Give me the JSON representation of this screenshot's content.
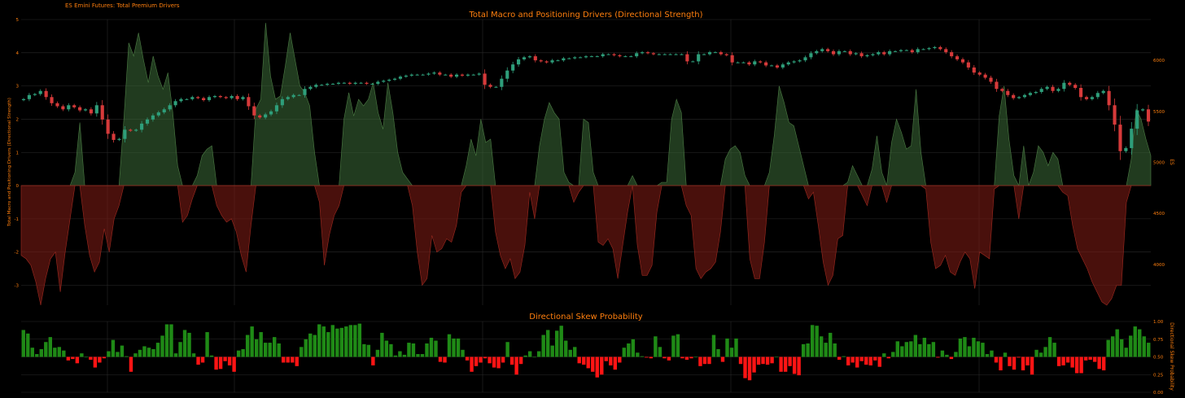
{
  "header": {
    "label": "ES Emini Futures: Total Premium Drivers"
  },
  "colors": {
    "background": "#000000",
    "accent": "#ff7f0e",
    "grid": "#2a2a2a",
    "area_positive": "#3d6b38",
    "area_negative": "#7a1a14",
    "candle_up": "#2e9e7a",
    "candle_down": "#d63a3a",
    "bar_up": "#1f8a16",
    "bar_down": "#ff1414"
  },
  "chart_data": [
    {
      "type": "area",
      "title": "Total Macro and Positioning Drivers (Directional Strength)",
      "ylabel": "Total Macro and Positioning Drivers (Directional Strength)",
      "y2label": "ES",
      "ylim": [
        -3.6,
        5
      ],
      "yticks": [
        "-3",
        "-2",
        "-1",
        "0",
        "1",
        "2",
        "3",
        "4",
        "5"
      ],
      "y2lim": [
        3600,
        6400
      ],
      "y2ticks": [
        "4000",
        "4500",
        "5000",
        "5500",
        "6000"
      ],
      "grid": true,
      "series": [
        {
          "kind": "area",
          "values": [
            -2.1,
            -2.2,
            -2.4,
            -2.9,
            -3.6,
            -2.8,
            -2.2,
            -2.0,
            -3.2,
            -2.0,
            -1.0,
            0.4,
            1.9,
            -1.2,
            -2.1,
            -2.6,
            -2.3,
            -1.3,
            -2.0,
            -1.0,
            -0.6,
            2.0,
            4.3,
            3.9,
            4.6,
            3.8,
            3.1,
            3.9,
            3.3,
            2.9,
            3.4,
            2.2,
            0.6,
            -1.1,
            -0.9,
            -0.4,
            0.3,
            0.9,
            1.1,
            1.2,
            -0.6,
            -0.9,
            -1.1,
            -1.0,
            -1.4,
            -2.1,
            -2.6,
            -1.2,
            2.3,
            2.6,
            4.9,
            3.3,
            2.6,
            2.7,
            3.6,
            4.6,
            3.8,
            3.0,
            2.8,
            2.4,
            1.0,
            -0.5,
            -2.4,
            -1.5,
            -0.9,
            -0.6,
            2.0,
            2.8,
            2.1,
            2.6,
            2.4,
            2.6,
            3.1,
            2.2,
            1.7,
            3.1,
            2.2,
            1.0,
            0.4,
            0.2,
            -0.6,
            -2.0,
            -3.0,
            -2.8,
            -1.5,
            -2.0,
            -1.9,
            -1.6,
            -1.7,
            -1.2,
            -0.2,
            0.6,
            1.4,
            0.9,
            2.0,
            1.3,
            1.4,
            -1.4,
            -2.1,
            -2.5,
            -2.2,
            -2.8,
            -2.6,
            -1.8,
            -0.2,
            -1.0,
            1.2,
            2.0,
            2.5,
            2.2,
            2.0,
            0.4,
            0.1,
            -0.5,
            -0.2,
            2.0,
            1.9,
            0.4,
            -1.7,
            -1.8,
            -1.6,
            -1.9,
            -2.8,
            -1.8,
            -0.8,
            0.3,
            -1.8,
            -2.7,
            -2.7,
            -2.4,
            -0.8,
            0.1,
            0.1,
            2.0,
            2.6,
            2.2,
            -0.6,
            -0.9,
            -2.5,
            -2.8,
            -2.6,
            -2.5,
            -2.3,
            -1.4,
            0.8,
            1.1,
            1.2,
            1.0,
            0.3,
            -2.2,
            -2.8,
            -2.8,
            -1.7,
            0.4,
            1.5,
            3.0,
            2.5,
            1.9,
            1.8,
            1.2,
            0.6,
            -0.4,
            -0.2,
            -1.2,
            -2.3,
            -3.0,
            -2.7,
            -1.6,
            -1.5,
            0.1,
            0.6,
            0.3,
            -0.3,
            -0.6,
            0.5,
            1.5,
            0.4,
            -0.5,
            1.3,
            2.0,
            1.6,
            1.1,
            1.2,
            2.9,
            1.0,
            -0.1,
            -1.7,
            -2.5,
            -2.4,
            -2.1,
            -2.6,
            -2.7,
            -2.3,
            -2.0,
            -2.2,
            -3.1,
            -2.0,
            -2.1,
            -2.2,
            -0.1,
            2.1,
            3.0,
            1.4,
            0.3,
            -1.0,
            1.2,
            0.0,
            0.4,
            1.2,
            1.0,
            0.6,
            1.0,
            0.8,
            -0.2,
            -0.3,
            -1.2,
            -1.9,
            -2.2,
            -2.5,
            -2.9,
            -3.2,
            -3.5,
            -3.6,
            -3.4,
            -3.0,
            -3.0,
            -0.5,
            0.8,
            2.3,
            2.0,
            1.4,
            0.9
          ]
        },
        {
          "kind": "candlestick",
          "name": "ES",
          "close": [
            5620,
            5660,
            5670,
            5700,
            5640,
            5580,
            5550,
            5520,
            5560,
            5540,
            5510,
            5520,
            5480,
            5560,
            5420,
            5280,
            5220,
            5230,
            5320,
            5310,
            5320,
            5380,
            5420,
            5460,
            5490,
            5520,
            5560,
            5600,
            5620,
            5620,
            5640,
            5630,
            5610,
            5640,
            5650,
            5640,
            5630,
            5650,
            5620,
            5640,
            5550,
            5460,
            5440,
            5470,
            5500,
            5560,
            5620,
            5640,
            5660,
            5660,
            5720,
            5740,
            5760,
            5760,
            5770,
            5770,
            5780,
            5780,
            5770,
            5780,
            5780,
            5770,
            5770,
            5790,
            5800,
            5810,
            5820,
            5840,
            5850,
            5860,
            5860,
            5860,
            5870,
            5880,
            5860,
            5860,
            5840,
            5860,
            5850,
            5860,
            5860,
            5870,
            5760,
            5740,
            5740,
            5820,
            5900,
            5960,
            6010,
            6030,
            6040,
            6000,
            5990,
            5980,
            6000,
            6000,
            6020,
            6020,
            6030,
            6030,
            6040,
            6040,
            6040,
            6060,
            6060,
            6050,
            6040,
            6040,
            6040,
            6070,
            6080,
            6070,
            6060,
            6060,
            6060,
            6060,
            6060,
            6060,
            5990,
            5990,
            6060,
            6060,
            6080,
            6080,
            6060,
            6050,
            5980,
            5980,
            5980,
            5960,
            5990,
            5980,
            5950,
            5950,
            5930,
            5960,
            5980,
            5990,
            6000,
            6030,
            6070,
            6090,
            6110,
            6090,
            6060,
            6090,
            6090,
            6060,
            6070,
            6040,
            6050,
            6060,
            6080,
            6060,
            6090,
            6090,
            6100,
            6100,
            6080,
            6110,
            6110,
            6120,
            6130,
            6110,
            6080,
            6040,
            6010,
            5980,
            5930,
            5880,
            5860,
            5830,
            5790,
            5720,
            5700,
            5660,
            5630,
            5640,
            5660,
            5680,
            5690,
            5720,
            5740,
            5700,
            5720,
            5780,
            5760,
            5730,
            5640,
            5620,
            5640,
            5680,
            5700,
            5560,
            5370,
            5110,
            5140,
            5330,
            5510,
            5520,
            5400
          ]
        }
      ]
    },
    {
      "type": "bar",
      "title": "Directional Skew Probability",
      "y2label": "Directional Skew Probability",
      "ylim": [
        0,
        1
      ],
      "yticks": [
        "0.00",
        "0.25",
        "0.50",
        "0.75",
        "1.00"
      ],
      "baseline": 0.5,
      "grid": true,
      "values": [
        0.88,
        0.83,
        0.63,
        0.54,
        0.61,
        0.71,
        0.78,
        0.63,
        0.64,
        0.59,
        0.45,
        0.47,
        0.41,
        0.55,
        0.5,
        0.46,
        0.35,
        0.42,
        0.48,
        0.58,
        0.74,
        0.57,
        0.66,
        0.51,
        0.29,
        0.55,
        0.6,
        0.65,
        0.63,
        0.61,
        0.7,
        0.8,
        0.96,
        0.96,
        0.55,
        0.71,
        0.88,
        0.84,
        0.55,
        0.39,
        0.42,
        0.85,
        0.52,
        0.32,
        0.33,
        0.44,
        0.38,
        0.29,
        0.59,
        0.61,
        0.81,
        0.93,
        0.75,
        0.85,
        0.7,
        0.7,
        0.78,
        0.69,
        0.42,
        0.42,
        0.42,
        0.37,
        0.64,
        0.75,
        0.83,
        0.81,
        0.96,
        0.93,
        0.85,
        0.95,
        0.9,
        0.91,
        0.93,
        0.95,
        0.95,
        0.97,
        0.68,
        0.67,
        0.38,
        0.6,
        0.84,
        0.73,
        0.68,
        0.52,
        0.58,
        0.53,
        0.7,
        0.69,
        0.54,
        0.54,
        0.69,
        0.77,
        0.73,
        0.43,
        0.42,
        0.82,
        0.76,
        0.76,
        0.6,
        0.45,
        0.29,
        0.37,
        0.42,
        0.48,
        0.41,
        0.35,
        0.34,
        0.42,
        0.71,
        0.39,
        0.25,
        0.4,
        0.52,
        0.58,
        0.5,
        0.58,
        0.81,
        0.88,
        0.66,
        0.87,
        0.94,
        0.73,
        0.6,
        0.64,
        0.41,
        0.39,
        0.34,
        0.29,
        0.21,
        0.25,
        0.44,
        0.38,
        0.32,
        0.42,
        0.63,
        0.69,
        0.75,
        0.56,
        0.51,
        0.49,
        0.48,
        0.79,
        0.64,
        0.48,
        0.45,
        0.8,
        0.82,
        0.48,
        0.46,
        0.48,
        0.5,
        0.37,
        0.4,
        0.4,
        0.81,
        0.61,
        0.43,
        0.76,
        0.63,
        0.76,
        0.4,
        0.2,
        0.17,
        0.28,
        0.39,
        0.4,
        0.39,
        0.41,
        0.5,
        0.29,
        0.29,
        0.37,
        0.26,
        0.24,
        0.68,
        0.69,
        0.95,
        0.94,
        0.79,
        0.7,
        0.84,
        0.69,
        0.46,
        0.51,
        0.38,
        0.42,
        0.35,
        0.44,
        0.39,
        0.38,
        0.45,
        0.36,
        0.55,
        0.48,
        0.57,
        0.72,
        0.65,
        0.71,
        0.72,
        0.81,
        0.68,
        0.77,
        0.68,
        0.71,
        0.49,
        0.59,
        0.53,
        0.47,
        0.57,
        0.76,
        0.78,
        0.65,
        0.77,
        0.72,
        0.7,
        0.54,
        0.59,
        0.42,
        0.31,
        0.56,
        0.37,
        0.32,
        0.49,
        0.31,
        0.38,
        0.25,
        0.6,
        0.56,
        0.64,
        0.78,
        0.7,
        0.37,
        0.38,
        0.42,
        0.35,
        0.27,
        0.27,
        0.45,
        0.46,
        0.43,
        0.33,
        0.31,
        0.74,
        0.79,
        0.89,
        0.75,
        0.63,
        0.8,
        0.93,
        0.89,
        0.79,
        0.7
      ]
    }
  ]
}
